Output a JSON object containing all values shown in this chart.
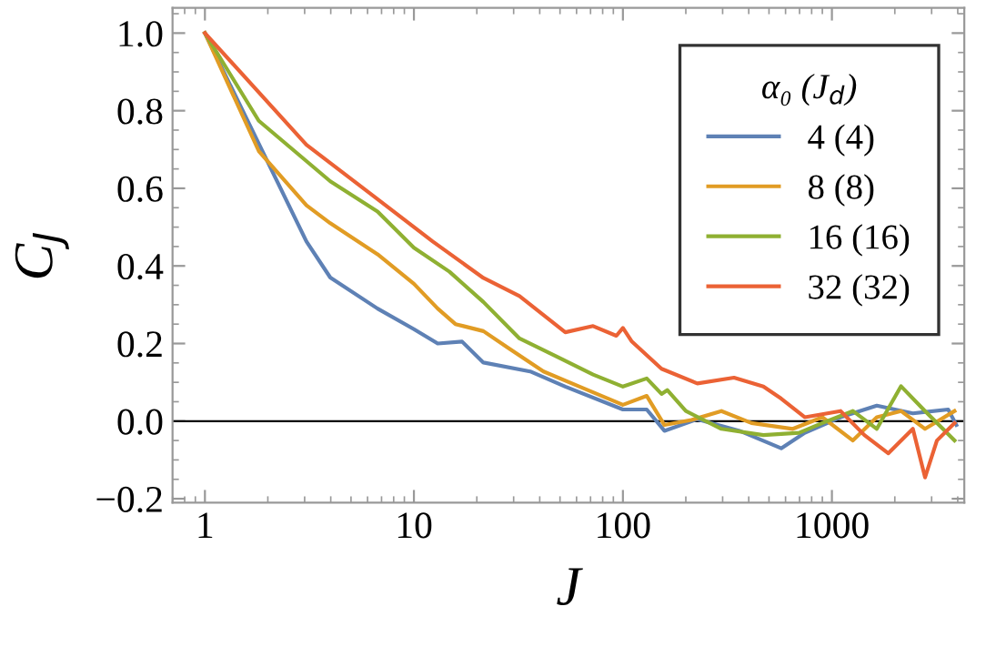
{
  "chart_data": {
    "type": "line",
    "xlabel": "J",
    "ylabel": "C$_{J}$",
    "legend_title": "α₀ (J$_{d}$)",
    "log": "x",
    "grid": false,
    "legend": "top right",
    "line_style": "solid",
    "marker": "none",
    "xlim": [
      0.7,
      4300
    ],
    "xticks": [
      1,
      10,
      100,
      1000
    ],
    "ylim": [
      -0.21,
      1.065
    ],
    "yticks": [
      {
        "value": -0.2,
        "label": "−0.2"
      },
      {
        "value": 0,
        "label": "0.0"
      },
      {
        "value": 0.2,
        "label": "0.2"
      },
      {
        "value": 0.4,
        "label": "0.4"
      },
      {
        "value": 0.6,
        "label": "0.6"
      },
      {
        "value": 0.8,
        "label": "0.8"
      },
      {
        "value": 1,
        "label": "1.0"
      }
    ],
    "ref_lines": [
      {
        "axis": "y",
        "value": 0,
        "color": "#000000"
      }
    ],
    "series": [
      {
        "name": "4 (4)",
        "color": "#5e81b5",
        "x": [
          1,
          3.06,
          3.98,
          6.7,
          10,
          13,
          17,
          21.5,
          36,
          53,
          100,
          130,
          158,
          227,
          361,
          572,
          743,
          1100,
          1640,
          2440,
          3600,
          3940
        ],
        "values": [
          1,
          0.463,
          0.37,
          0.29,
          0.237,
          0.2,
          0.205,
          0.151,
          0.128,
          0.089,
          0.03,
          0.03,
          -0.025,
          0.005,
          -0.025,
          -0.07,
          -0.03,
          0.01,
          0.04,
          0.02,
          0.03,
          -0.01
        ]
      },
      {
        "name": "8 (8)",
        "color": "#e19c24",
        "x": [
          1,
          1.81,
          3.06,
          3.98,
          6.7,
          10,
          13,
          15.8,
          21.5,
          28,
          41.7,
          62,
          100,
          130,
          158,
          213,
          296,
          412,
          650,
          900,
          1260,
          1640,
          2140,
          2790,
          3860
        ],
        "values": [
          1,
          0.696,
          0.556,
          0.51,
          0.43,
          0.354,
          0.29,
          0.25,
          0.232,
          0.19,
          0.128,
          0.089,
          0.042,
          0.065,
          -0.01,
          0.003,
          0.026,
          -0.005,
          -0.02,
          0.01,
          -0.05,
          0.01,
          0.026,
          -0.02,
          0.026
        ]
      },
      {
        "name": "16 (16)",
        "color": "#8fb032",
        "x": [
          1,
          1.81,
          3.98,
          6.7,
          10,
          14.8,
          21.5,
          32,
          48,
          72,
          100,
          130,
          153,
          163,
          200,
          296,
          470,
          697,
          900,
          1260,
          1640,
          2140,
          2790,
          3860
        ],
        "values": [
          1,
          0.774,
          0.618,
          0.54,
          0.447,
          0.385,
          0.307,
          0.213,
          0.167,
          0.12,
          0.089,
          0.11,
          0.07,
          0.08,
          0.026,
          -0.02,
          -0.036,
          -0.03,
          -0.005,
          0.026,
          -0.02,
          0.09,
          0.026,
          -0.05
        ]
      },
      {
        "name": "32 (32)",
        "color": "#eb6235",
        "x": [
          1,
          3.06,
          6.7,
          12.3,
          21.5,
          32,
          53,
          72,
          93,
          100,
          110,
          153,
          227,
          340,
          470,
          572,
          743,
          1100,
          1430,
          1860,
          2440,
          2790,
          3180,
          3860
        ],
        "values": [
          1,
          0.712,
          0.572,
          0.463,
          0.369,
          0.322,
          0.229,
          0.245,
          0.22,
          0.24,
          0.206,
          0.135,
          0.097,
          0.112,
          0.089,
          0.058,
          0.01,
          0.026,
          -0.036,
          -0.083,
          -0.02,
          -0.145,
          -0.05,
          -0.005
        ]
      }
    ]
  }
}
